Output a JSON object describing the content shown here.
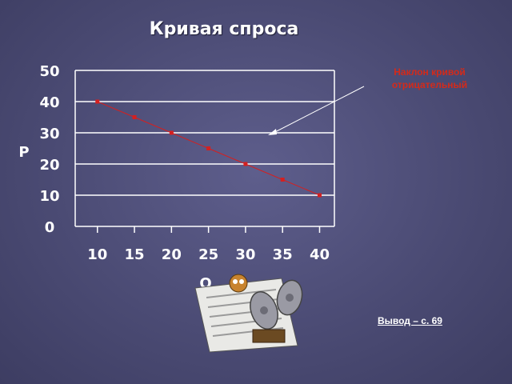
{
  "title": "Кривая спроса",
  "annotation": {
    "line1": "Наклон кривой",
    "line2": "отрицательный"
  },
  "footer": "Вывод – с. 69",
  "colors": {
    "line": "#d42020",
    "grid": "#ffffff",
    "text": "#ffffff",
    "annotation": "#d42a1a"
  },
  "chart_data": {
    "type": "line",
    "ylabel": "P",
    "xlabel": "Q",
    "x": [
      10,
      15,
      20,
      25,
      30,
      35,
      40
    ],
    "y": [
      40,
      35,
      30,
      25,
      20,
      15,
      10
    ],
    "x_ticks": [
      "10",
      "15",
      "20",
      "25",
      "30",
      "35",
      "40"
    ],
    "y_ticks": [
      "50",
      "40",
      "30",
      "20",
      "10",
      "0"
    ],
    "xlim": [
      7,
      42
    ],
    "ylim": [
      0,
      50
    ],
    "grid": "horizontal"
  }
}
